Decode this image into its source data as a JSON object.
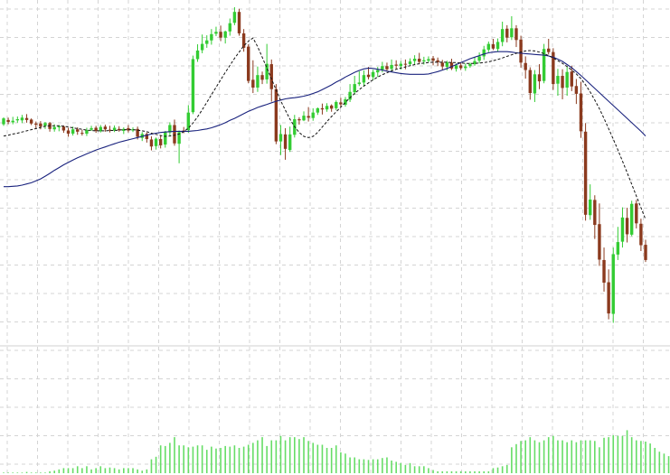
{
  "chart_data": {
    "type": "candlestick",
    "grid": true,
    "colors": {
      "up": "#33cc33",
      "down": "#8b3a1e",
      "volume": "#66dd66",
      "ma_fast": "#111111",
      "ma_slow": "#1a237e",
      "grid": "#d4d4d4",
      "baseline": "#d0d0d0"
    },
    "price_range": [
      0,
      100
    ],
    "volume_max": 100,
    "candles": [
      [
        70,
        71.5,
        71.8,
        69.6
      ],
      [
        71.1,
        70.6,
        71.7,
        70
      ],
      [
        70.5,
        70.9,
        71.9,
        70
      ],
      [
        71,
        71.3,
        72,
        70.4
      ],
      [
        71,
        71.7,
        72.4,
        70.3
      ],
      [
        71.6,
        71.1,
        72.6,
        70.4
      ],
      [
        71.2,
        70.2,
        71.5,
        69.8
      ],
      [
        70.2,
        69.9,
        70.7,
        69
      ],
      [
        70.2,
        69.4,
        70.8,
        68.7
      ],
      [
        69.6,
        70.3,
        70.6,
        68.8
      ],
      [
        70.3,
        68.8,
        70.6,
        68.1
      ],
      [
        68.7,
        69.3,
        70,
        68.1
      ],
      [
        69.2,
        69.5,
        69.8,
        68.2
      ],
      [
        69.4,
        68.4,
        69.7,
        67.8
      ],
      [
        68.4,
        67.6,
        69.1,
        66.8
      ],
      [
        67.6,
        68.7,
        69.4,
        67.1
      ],
      [
        68.7,
        68.1,
        69.2,
        67.3
      ],
      [
        67.8,
        67.6,
        68.6,
        67.1
      ],
      [
        67.6,
        68.5,
        69.1,
        67
      ],
      [
        68.6,
        69,
        69.6,
        68.3
      ],
      [
        69.1,
        68.3,
        69.6,
        67.8
      ],
      [
        68.2,
        69.3,
        69.8,
        67.9
      ],
      [
        69.4,
        68.7,
        69.9,
        68.1
      ],
      [
        68.6,
        68.5,
        69.6,
        67.9
      ],
      [
        68.4,
        69.1,
        69.7,
        68
      ],
      [
        68.8,
        68.5,
        69.5,
        68.1
      ],
      [
        68.3,
        68.8,
        69.2,
        67.5
      ],
      [
        69,
        68.4,
        69.8,
        67.9
      ],
      [
        68.4,
        68.7,
        69.2,
        68
      ],
      [
        68.8,
        66.8,
        69.4,
        66.1
      ],
      [
        66.5,
        67.5,
        68,
        65.7
      ],
      [
        67.5,
        66.2,
        67.9,
        65.3
      ],
      [
        66.1,
        64.3,
        66.9,
        63.3
      ],
      [
        64.4,
        66.3,
        66.6,
        63.5
      ],
      [
        66.2,
        64.6,
        67.2,
        63.8
      ],
      [
        64.8,
        67.9,
        68.3,
        64
      ],
      [
        67.9,
        69.8,
        70.5,
        67
      ],
      [
        69.8,
        65.1,
        71.2,
        64.5
      ],
      [
        65,
        68,
        68.4,
        60
      ],
      [
        68.4,
        68.3,
        69.3,
        67.7
      ],
      [
        68.5,
        73,
        74.9,
        67.8
      ],
      [
        73.1,
        86.7,
        87.6,
        72.6
      ],
      [
        86.7,
        88.9,
        90.5,
        86
      ],
      [
        89,
        90.6,
        93,
        88.2
      ],
      [
        90.6,
        91.5,
        92.8,
        89.6
      ],
      [
        91.5,
        93.1,
        94.4,
        90.4
      ],
      [
        93.2,
        93.7,
        95,
        92.6
      ],
      [
        93.7,
        92.2,
        95.3,
        91.3
      ],
      [
        92.2,
        93.8,
        94,
        90.7
      ],
      [
        93.8,
        95.9,
        97.1,
        92.7
      ],
      [
        96,
        98.8,
        100,
        95.4
      ],
      [
        98.8,
        93.3,
        99.6,
        92.7
      ],
      [
        93.3,
        89.6,
        94.4,
        88.6
      ],
      [
        89.9,
        81.1,
        90.5,
        80.5
      ],
      [
        81.4,
        79.4,
        86.4,
        78
      ],
      [
        79.4,
        82.6,
        84.8,
        78.3
      ],
      [
        82.6,
        81.4,
        83.5,
        80.3
      ],
      [
        81.5,
        85.5,
        90.6,
        80.4
      ],
      [
        85.4,
        79,
        86.6,
        75.8
      ],
      [
        79,
        65.6,
        80.3,
        64.9
      ],
      [
        65.6,
        67.5,
        69.8,
        62.1
      ],
      [
        67.4,
        63.7,
        69,
        60.9
      ],
      [
        63.4,
        67.4,
        69.4,
        62.9
      ],
      [
        67.3,
        71.3,
        72.4,
        66.6
      ],
      [
        71.3,
        71,
        71.8,
        69.9
      ],
      [
        71,
        72.2,
        73.3,
        70.8
      ],
      [
        72.1,
        71.7,
        74.4,
        70.7
      ],
      [
        71.6,
        73,
        74.1,
        70.9
      ],
      [
        73,
        74.1,
        74.3,
        72.4
      ],
      [
        74.1,
        73.8,
        75.3,
        72.5
      ],
      [
        73.8,
        74.7,
        75.4,
        73.2
      ],
      [
        74.8,
        74,
        75.1,
        73.2
      ],
      [
        74.1,
        75.7,
        76.1,
        73.6
      ],
      [
        75.6,
        75.1,
        76.8,
        74.5
      ],
      [
        75,
        76.4,
        77,
        74.5
      ],
      [
        76.3,
        78.3,
        80.3,
        75.7
      ],
      [
        78.2,
        80.3,
        82.4,
        77.6
      ],
      [
        80.3,
        80.7,
        83.6,
        79.8
      ],
      [
        80.7,
        82.6,
        83.8,
        79.8
      ],
      [
        82.7,
        82.1,
        84.7,
        81.5
      ],
      [
        82.1,
        83.4,
        84,
        81.3
      ],
      [
        83.3,
        83.9,
        84.7,
        82.1
      ],
      [
        84,
        84.9,
        86,
        83.3
      ],
      [
        84.9,
        84.1,
        85.8,
        83.5
      ],
      [
        84.2,
        85.2,
        86.6,
        83.5
      ],
      [
        85.3,
        85,
        86.4,
        84.2
      ],
      [
        84.9,
        85.5,
        86.2,
        84
      ],
      [
        85.5,
        85.3,
        86.6,
        84.1
      ],
      [
        85.4,
        86.1,
        86.9,
        85
      ],
      [
        86.2,
        86.8,
        87.7,
        85.3
      ],
      [
        86.8,
        86,
        88.3,
        85.4
      ],
      [
        86.1,
        86.4,
        87.3,
        85.3
      ],
      [
        86.3,
        86.7,
        87.4,
        85.9
      ],
      [
        86.9,
        86.3,
        87.5,
        85.1
      ],
      [
        86.4,
        85.9,
        87.1,
        84.9
      ],
      [
        85.8,
        84.8,
        86.5,
        83.9
      ],
      [
        84.7,
        85.9,
        86.3,
        83.8
      ],
      [
        85.8,
        84.3,
        86.8,
        83.9
      ],
      [
        84.2,
        85.1,
        85.6,
        83.5
      ],
      [
        85.1,
        84.4,
        85.9,
        83.9
      ],
      [
        84.4,
        84.8,
        85.6,
        83.7
      ],
      [
        84.9,
        85.5,
        85.8,
        84.5
      ],
      [
        85.4,
        86.2,
        87.2,
        85
      ],
      [
        86.3,
        87.4,
        88.4,
        85.6
      ],
      [
        87.4,
        89.2,
        90.1,
        86.5
      ],
      [
        89.1,
        90.6,
        91.2,
        88.5
      ],
      [
        90.5,
        89.4,
        91.9,
        89
      ],
      [
        89.3,
        91.1,
        92,
        88.6
      ],
      [
        91.1,
        94.4,
        96.3,
        90
      ],
      [
        94.5,
        92.2,
        95.4,
        91
      ],
      [
        92.3,
        94.6,
        97.7,
        91.6
      ],
      [
        94.6,
        91.6,
        95.4,
        89.8
      ],
      [
        91.7,
        85.8,
        92.7,
        84.5
      ],
      [
        85.7,
        83.9,
        87.4,
        81.7
      ],
      [
        83.9,
        78,
        84.6,
        76.3
      ],
      [
        77.9,
        82.8,
        83.9,
        75.7
      ],
      [
        82.8,
        81,
        85.4,
        79
      ],
      [
        81.1,
        89.3,
        90.6,
        80.5
      ],
      [
        89.4,
        88.5,
        91.9,
        87.9
      ],
      [
        88.5,
        80.3,
        89.5,
        78.8
      ],
      [
        80.4,
        82.4,
        84.2,
        77.3
      ],
      [
        82.4,
        79.3,
        84.1,
        76.4
      ],
      [
        79.4,
        83.4,
        84.8,
        77.3
      ],
      [
        83.5,
        79.7,
        85,
        78.5
      ],
      [
        79.8,
        77.8,
        81.6,
        75.2
      ],
      [
        77.9,
        68.2,
        80.9,
        66.5
      ],
      [
        68.1,
        46.8,
        70.3,
        45.3
      ],
      [
        46.7,
        50.7,
        54.6,
        45.5
      ],
      [
        50.6,
        44.2,
        51.8,
        40.6
      ],
      [
        44.4,
        35.3,
        49.7,
        33.7
      ],
      [
        35.2,
        29.4,
        38.4,
        27.1
      ],
      [
        29.5,
        21.5,
        32.8,
        20
      ],
      [
        21.4,
        36.7,
        38.4,
        19.1
      ],
      [
        36.6,
        39.8,
        43.7,
        35.2
      ],
      [
        39.9,
        46.1,
        48.7,
        38.4
      ],
      [
        46,
        41.8,
        48.6,
        39.7
      ],
      [
        41.7,
        49.6,
        50.4,
        41.3
      ],
      [
        49.7,
        44.6,
        50.6,
        43.3
      ],
      [
        44.5,
        39,
        45.8,
        37.5
      ],
      [
        39.1,
        35.2,
        40.4,
        34.7
      ]
    ],
    "volumes": [
      1,
      1,
      1,
      1,
      1,
      2,
      1,
      1,
      1,
      1,
      3,
      4,
      6,
      8,
      8,
      8,
      11,
      8,
      11,
      6,
      8,
      11,
      8,
      9,
      8,
      6,
      8,
      8,
      8,
      6,
      4,
      6,
      22,
      26,
      44,
      43,
      48,
      57,
      44,
      44,
      41,
      42,
      44,
      44,
      37,
      42,
      39,
      40,
      43,
      42,
      44,
      40,
      42,
      45,
      48,
      52,
      57,
      43,
      52,
      52,
      59,
      52,
      57,
      57,
      54,
      57,
      51,
      48,
      45,
      45,
      40,
      40,
      44,
      33,
      31,
      25,
      25,
      22,
      22,
      21,
      22,
      22,
      24,
      25,
      20,
      18,
      16,
      13,
      16,
      11,
      11,
      11,
      8,
      5,
      3,
      3,
      3,
      3,
      3,
      3,
      3,
      3,
      3,
      3,
      3,
      3,
      8,
      9,
      11,
      13,
      41,
      46,
      51,
      52,
      57,
      52,
      49,
      52,
      57,
      59,
      52,
      52,
      49,
      52,
      49,
      52,
      52,
      52,
      51,
      41,
      56,
      57,
      60,
      59,
      59,
      68,
      57,
      52,
      51,
      50,
      47,
      40,
      34,
      31,
      27,
      25
    ],
    "ma_fast": [
      67,
      67.2,
      67.5,
      67.7,
      68,
      68.3,
      68.6,
      68.9,
      69.2,
      69.5,
      69.6,
      69.6,
      69.6,
      69.5,
      69.3,
      69.1,
      68.9,
      68.7,
      68.5,
      68.4,
      68.3,
      68.3,
      68.3,
      68.4,
      68.4,
      68.5,
      68.6,
      68.6,
      68.6,
      68.5,
      68.3,
      68.1,
      67.7,
      67.4,
      67.1,
      66.9,
      67,
      67.2,
      67.5,
      68.1,
      69,
      70.3,
      71.9,
      73.7,
      75.6,
      77.6,
      79.5,
      81.4,
      83.3,
      85.1,
      86.9,
      88.5,
      90.1,
      91.3,
      92.1,
      89.9,
      87.2,
      84.4,
      81.6,
      78.8,
      76,
      73.6,
      71.3,
      69.4,
      67.9,
      66.9,
      66.6,
      66.9,
      67.9,
      69.3,
      70.7,
      72,
      73.2,
      74.4,
      75.6,
      76.8,
      77.9,
      78.9,
      79.8,
      80.6,
      81.4,
      82.1,
      82.7,
      83.2,
      83.7,
      84.1,
      84.4,
      84.7,
      85,
      85.3,
      85.5,
      85.7,
      85.8,
      85.9,
      85.9,
      85.9,
      85.9,
      85.8,
      85.8,
      85.7,
      85.6,
      85.6,
      85.6,
      85.7,
      85.8,
      86,
      86.3,
      86.6,
      87,
      87.4,
      87.8,
      88.2,
      88.5,
      88.8,
      88.9,
      88.8,
      88.5,
      88.1,
      87.6,
      87,
      86.3,
      85.6,
      84.8,
      83.9,
      82.9,
      81.7,
      80.1,
      78.3,
      76.2,
      74,
      71.5,
      68.9,
      66.2,
      63.4,
      60.5,
      57.6,
      54.6,
      51.6,
      48.6,
      45.6
    ],
    "ma_slow": [
      54,
      54,
      54.1,
      54.2,
      54.4,
      54.7,
      55,
      55.5,
      56,
      56.7,
      57.4,
      58.2,
      58.9,
      59.6,
      60.2,
      60.8,
      61.4,
      61.9,
      62.4,
      62.9,
      63.4,
      63.8,
      64.2,
      64.6,
      65,
      65.4,
      65.7,
      66,
      66.3,
      66.6,
      66.9,
      67.2,
      67.5,
      67.7,
      67.9,
      68,
      68.1,
      68.2,
      68.2,
      68.2,
      68.2,
      68.3,
      68.4,
      68.6,
      68.8,
      69.1,
      69.5,
      69.9,
      70.4,
      71,
      71.5,
      72.1,
      72.7,
      73.3,
      73.8,
      74.3,
      74.7,
      75.1,
      75.5,
      75.9,
      76.2,
      76.5,
      76.7,
      76.8,
      77,
      77.2,
      77.5,
      77.9,
      78.3,
      78.9,
      79.5,
      80.1,
      80.8,
      81.4,
      82.1,
      82.7,
      83.3,
      83.8,
      84.2,
      84.4,
      84.3,
      84.1,
      83.9,
      83.6,
      83.4,
      83.2,
      83,
      82.9,
      82.8,
      82.8,
      82.8,
      82.8,
      82.9,
      83.2,
      83.5,
      83.9,
      84.3,
      84.8,
      85.3,
      85.8,
      86.3,
      86.8,
      87.2,
      87.6,
      88,
      88.3,
      88.5,
      88.6,
      88.6,
      88.6,
      88.5,
      88.3,
      88.2,
      88.1,
      88,
      87.9,
      87.8,
      87.7,
      87.5,
      87.2,
      86.7,
      86.1,
      85.3,
      84.5,
      83.5,
      82.5,
      81.4,
      80.3,
      79.2,
      78.1,
      77,
      75.9,
      74.8,
      73.7,
      72.6,
      71.5,
      70.4,
      69.3,
      68.2,
      67
    ]
  }
}
